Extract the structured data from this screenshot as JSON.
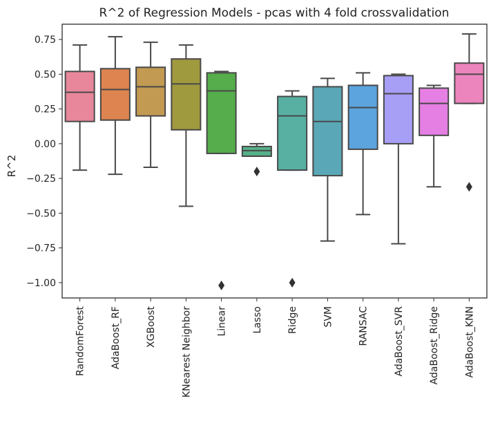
{
  "chart_data": {
    "type": "box",
    "title": "R^2 of Regression Models - pcas  with 4 fold crossvalidation",
    "xlabel": "",
    "ylabel": "R^2",
    "ylim": [
      -1.11,
      0.86
    ],
    "yticks": [
      0.75,
      0.5,
      0.25,
      0.0,
      -0.25,
      -0.5,
      -0.75,
      -1.0
    ],
    "ytick_labels": [
      "0.75",
      "0.50",
      "0.25",
      "0.00",
      "−0.25",
      "−0.50",
      "−0.75",
      "−1.00"
    ],
    "grid": false,
    "categories": [
      "RandomForest",
      "AdaBoost_RF",
      "XGBoost",
      "KNearest Neighbor",
      "Linear",
      "Lasso",
      "Ridge",
      "SVM",
      "RANSAC",
      "AdaBoost_SVR",
      "AdaBoost_Ridge",
      "AdaBoost_KNN"
    ],
    "colors": [
      "#e8879b",
      "#dd8451",
      "#c29a52",
      "#a09a3e",
      "#55ad4b",
      "#56b08a",
      "#58b0a3",
      "#5aa8b7",
      "#5ba4de",
      "#a79ef5",
      "#e67fe3",
      "#ec84bd"
    ],
    "boxes": [
      {
        "whislo": -0.19,
        "q1": 0.16,
        "med": 0.37,
        "q3": 0.52,
        "whishi": 0.71,
        "fliers": []
      },
      {
        "whislo": -0.22,
        "q1": 0.17,
        "med": 0.39,
        "q3": 0.54,
        "whishi": 0.77,
        "fliers": []
      },
      {
        "whislo": -0.17,
        "q1": 0.2,
        "med": 0.41,
        "q3": 0.55,
        "whishi": 0.73,
        "fliers": []
      },
      {
        "whislo": -0.45,
        "q1": 0.1,
        "med": 0.43,
        "q3": 0.61,
        "whishi": 0.71,
        "fliers": []
      },
      {
        "whislo": -0.07,
        "q1": -0.07,
        "med": 0.38,
        "q3": 0.51,
        "whishi": 0.52,
        "fliers": [
          -1.02
        ]
      },
      {
        "whislo": -0.09,
        "q1": -0.09,
        "med": -0.05,
        "q3": -0.02,
        "whishi": 0.0,
        "fliers": [
          -0.2
        ]
      },
      {
        "whislo": -0.19,
        "q1": -0.19,
        "med": 0.2,
        "q3": 0.34,
        "whishi": 0.38,
        "fliers": [
          -1.0
        ]
      },
      {
        "whislo": -0.7,
        "q1": -0.23,
        "med": 0.16,
        "q3": 0.41,
        "whishi": 0.47,
        "fliers": []
      },
      {
        "whislo": -0.51,
        "q1": -0.04,
        "med": 0.26,
        "q3": 0.42,
        "whishi": 0.51,
        "fliers": []
      },
      {
        "whislo": -0.72,
        "q1": 0.0,
        "med": 0.36,
        "q3": 0.49,
        "whishi": 0.5,
        "fliers": []
      },
      {
        "whislo": -0.31,
        "q1": 0.06,
        "med": 0.29,
        "q3": 0.4,
        "whishi": 0.42,
        "fliers": []
      },
      {
        "whislo": 0.29,
        "q1": 0.29,
        "med": 0.5,
        "q3": 0.58,
        "whishi": 0.79,
        "fliers": [
          -0.31
        ]
      }
    ]
  }
}
